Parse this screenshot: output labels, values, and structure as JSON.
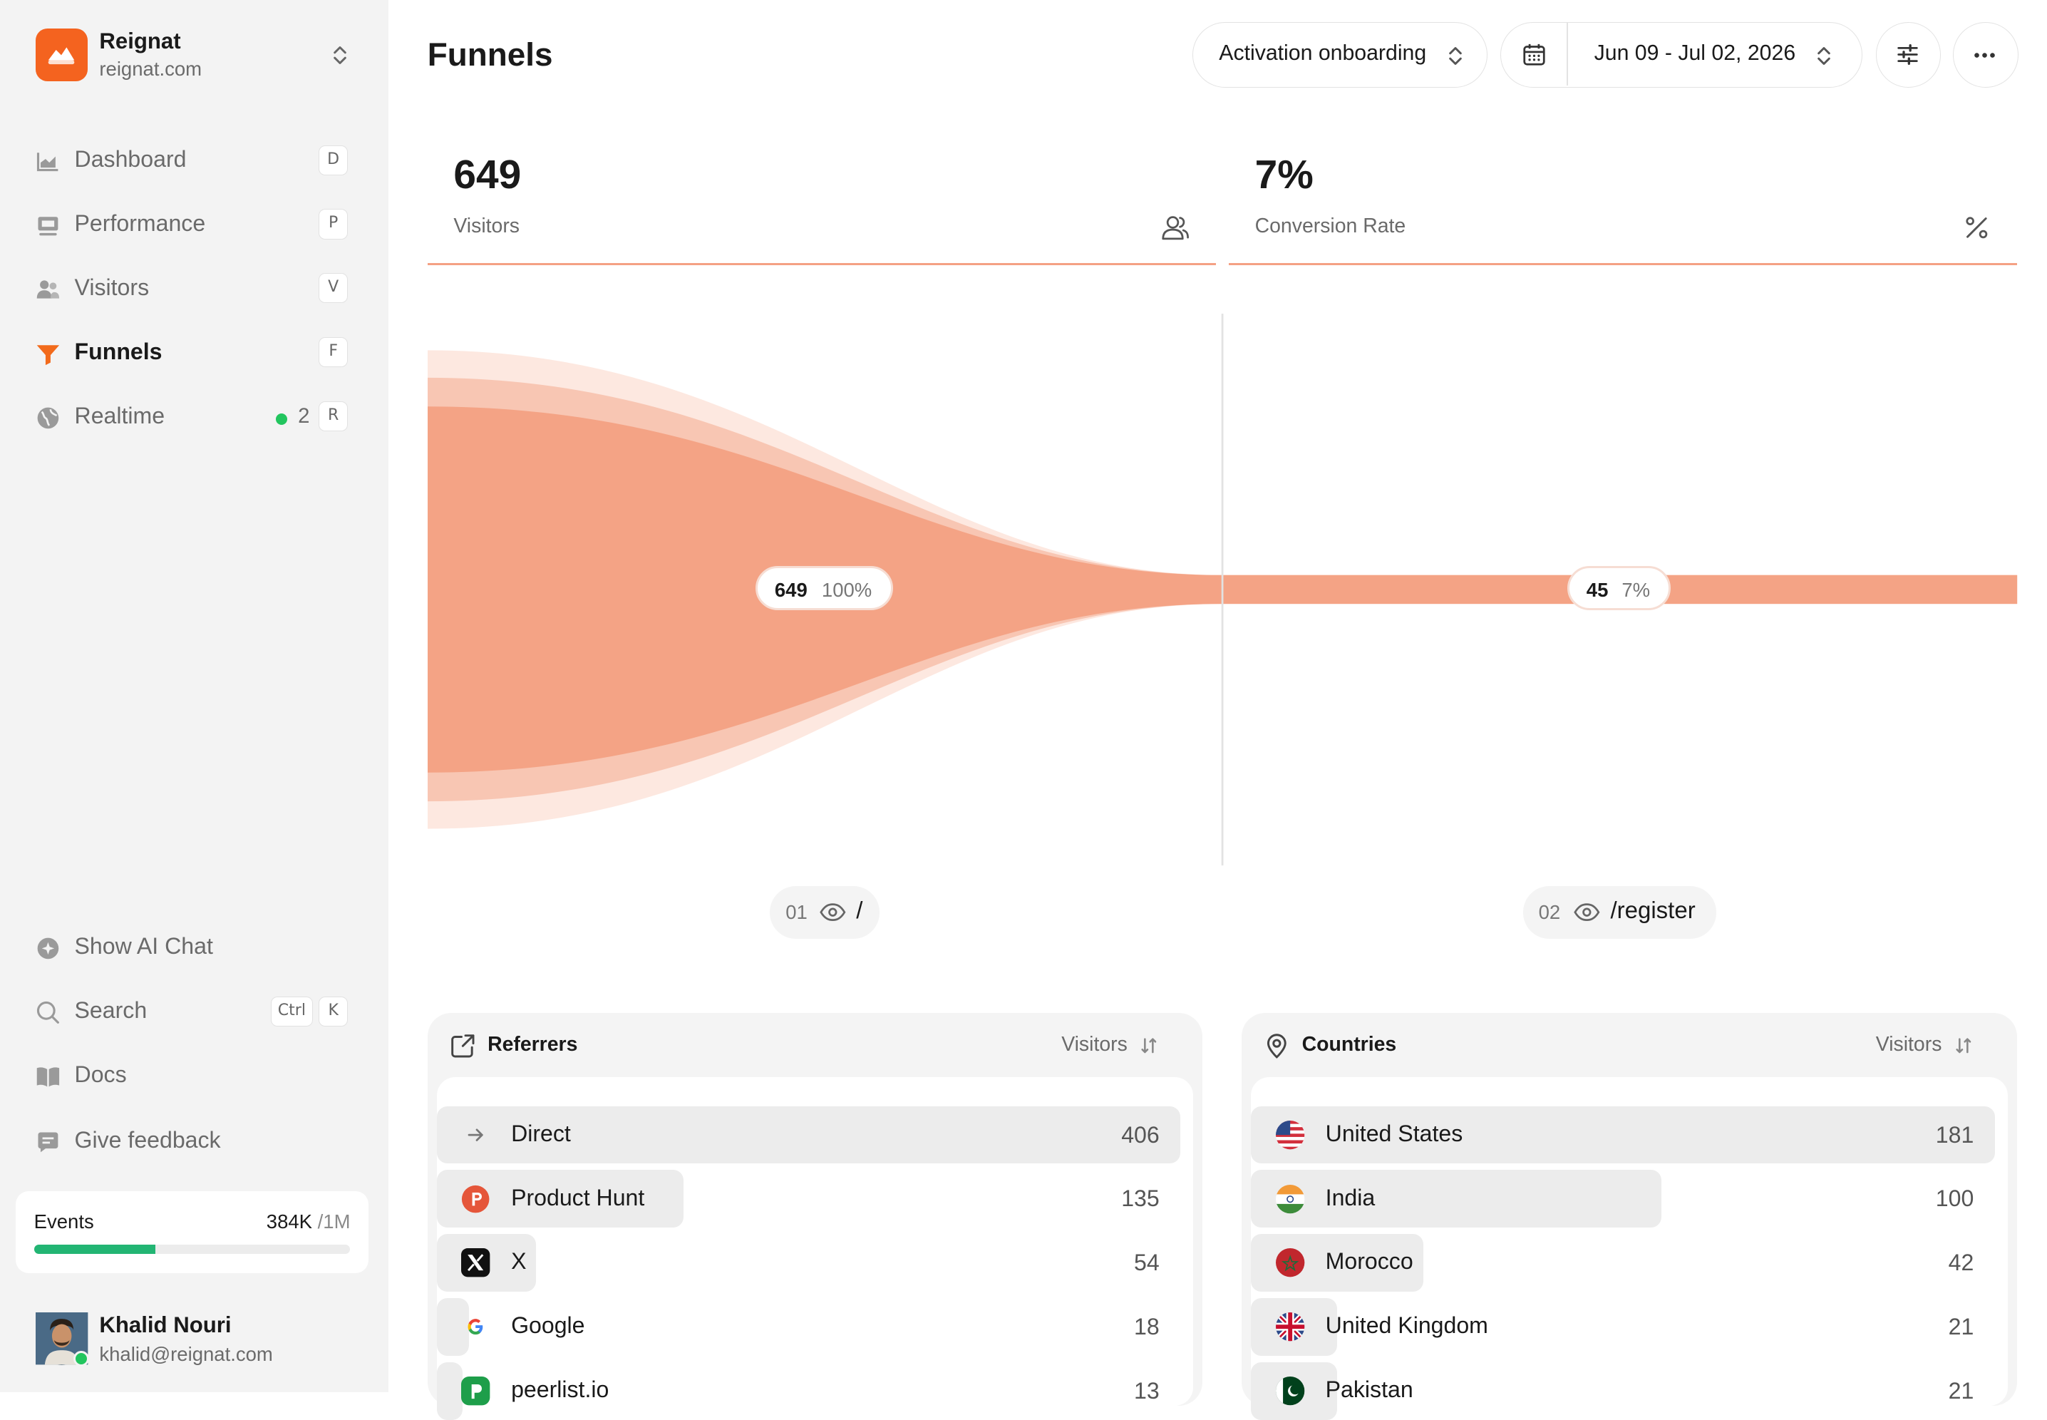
{
  "brand": {
    "name": "Reignat",
    "domain": "reignat.com"
  },
  "nav": {
    "items": [
      {
        "label": "Dashboard",
        "shortcut": "D"
      },
      {
        "label": "Performance",
        "shortcut": "P"
      },
      {
        "label": "Visitors",
        "shortcut": "V"
      },
      {
        "label": "Funnels",
        "shortcut": "F"
      },
      {
        "label": "Realtime",
        "shortcut": "R",
        "count": "2"
      }
    ],
    "active": "Funnels"
  },
  "bottom_nav": {
    "ai_chat": "Show AI Chat",
    "search": "Search",
    "search_kbd_1": "Ctrl",
    "search_kbd_2": "K",
    "docs": "Docs",
    "feedback": "Give feedback"
  },
  "events": {
    "label": "Events",
    "used": "384K",
    "limit": "/1M",
    "fraction": 0.384
  },
  "user": {
    "name": "Khalid Nouri",
    "email": "khalid@reignat.com"
  },
  "header": {
    "title": "Funnels",
    "funnel_select": "Activation onboarding",
    "date_range": "Jun 09 - Jul 02, 2026"
  },
  "stats": {
    "visitors": {
      "value": "649",
      "label": "Visitors"
    },
    "conversion": {
      "value": "7%",
      "label": "Conversion Rate"
    }
  },
  "funnel": {
    "steps": [
      {
        "num": "01",
        "path": "/",
        "count": "649",
        "pct": "100%"
      },
      {
        "num": "02",
        "path": "/register",
        "count": "45",
        "pct": "7%"
      }
    ],
    "colors": {
      "main": "#f4a385",
      "mid": "#f8c6b3",
      "outer": "#fde8e0"
    }
  },
  "referrers": {
    "title": "Referrers",
    "column": "Visitors",
    "rows": [
      {
        "label": "Direct",
        "value": "406",
        "fraction": 1.0,
        "icon": "arrow-right-icon"
      },
      {
        "label": "Product Hunt",
        "value": "135",
        "fraction": 0.332,
        "icon": "product-hunt-icon"
      },
      {
        "label": "X",
        "value": "54",
        "fraction": 0.133,
        "icon": "x-logo-icon"
      },
      {
        "label": "Google",
        "value": "18",
        "fraction": 0.044,
        "icon": "google-icon"
      },
      {
        "label": "peerlist.io",
        "value": "13",
        "fraction": 0.032,
        "icon": "peerlist-icon"
      }
    ]
  },
  "countries": {
    "title": "Countries",
    "column": "Visitors",
    "rows": [
      {
        "label": "United States",
        "value": "181",
        "fraction": 1.0,
        "icon": "us-flag-icon"
      },
      {
        "label": "India",
        "value": "100",
        "fraction": 0.552,
        "icon": "india-flag-icon"
      },
      {
        "label": "Morocco",
        "value": "42",
        "fraction": 0.232,
        "icon": "morocco-flag-icon"
      },
      {
        "label": "United Kingdom",
        "value": "21",
        "fraction": 0.116,
        "icon": "uk-flag-icon"
      },
      {
        "label": "Pakistan",
        "value": "21",
        "fraction": 0.116,
        "icon": "pakistan-flag-icon"
      }
    ]
  }
}
